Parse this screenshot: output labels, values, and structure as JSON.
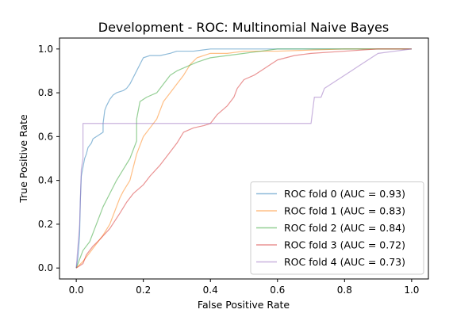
{
  "chart_data": {
    "type": "line",
    "title": "Development - ROC: Multinomial Naive Bayes",
    "xlabel": "False Positive Rate",
    "ylabel": "True Positive Rate",
    "xlim": [
      -0.05,
      1.05
    ],
    "ylim": [
      -0.05,
      1.05
    ],
    "xticks": [
      0.0,
      0.2,
      0.4,
      0.6,
      0.8,
      1.0
    ],
    "yticks": [
      0.0,
      0.2,
      0.4,
      0.6,
      0.8,
      1.0
    ],
    "xtick_labels": [
      "0.0",
      "0.2",
      "0.4",
      "0.6",
      "0.8",
      "1.0"
    ],
    "ytick_labels": [
      "0.0",
      "0.2",
      "0.4",
      "0.6",
      "0.8",
      "1.0"
    ],
    "grid": false,
    "legend_position": "lower-right",
    "series": [
      {
        "name": "ROC fold 0 (AUC = 0.93)",
        "color": "#1f77b4",
        "points": [
          [
            0,
            0
          ],
          [
            0.005,
            0.05
          ],
          [
            0.01,
            0.15
          ],
          [
            0.012,
            0.3
          ],
          [
            0.015,
            0.42
          ],
          [
            0.02,
            0.46
          ],
          [
            0.025,
            0.5
          ],
          [
            0.03,
            0.52
          ],
          [
            0.035,
            0.55
          ],
          [
            0.04,
            0.56
          ],
          [
            0.045,
            0.57
          ],
          [
            0.05,
            0.59
          ],
          [
            0.06,
            0.6
          ],
          [
            0.07,
            0.61
          ],
          [
            0.08,
            0.62
          ],
          [
            0.08,
            0.66
          ],
          [
            0.085,
            0.72
          ],
          [
            0.09,
            0.74
          ],
          [
            0.1,
            0.77
          ],
          [
            0.11,
            0.79
          ],
          [
            0.12,
            0.8
          ],
          [
            0.14,
            0.81
          ],
          [
            0.15,
            0.82
          ],
          [
            0.16,
            0.84
          ],
          [
            0.17,
            0.87
          ],
          [
            0.18,
            0.9
          ],
          [
            0.19,
            0.93
          ],
          [
            0.2,
            0.96
          ],
          [
            0.22,
            0.97
          ],
          [
            0.25,
            0.97
          ],
          [
            0.28,
            0.98
          ],
          [
            0.3,
            0.99
          ],
          [
            0.35,
            0.99
          ],
          [
            0.4,
            1.0
          ],
          [
            0.6,
            1.0
          ],
          [
            1.0,
            1.0
          ]
        ]
      },
      {
        "name": "ROC fold 1 (AUC = 0.83)",
        "color": "#ff7f0e",
        "points": [
          [
            0,
            0
          ],
          [
            0.02,
            0.03
          ],
          [
            0.04,
            0.07
          ],
          [
            0.06,
            0.11
          ],
          [
            0.08,
            0.15
          ],
          [
            0.1,
            0.2
          ],
          [
            0.11,
            0.24
          ],
          [
            0.12,
            0.28
          ],
          [
            0.13,
            0.32
          ],
          [
            0.14,
            0.35
          ],
          [
            0.16,
            0.4
          ],
          [
            0.17,
            0.46
          ],
          [
            0.18,
            0.52
          ],
          [
            0.19,
            0.56
          ],
          [
            0.2,
            0.6
          ],
          [
            0.22,
            0.64
          ],
          [
            0.24,
            0.68
          ],
          [
            0.25,
            0.72
          ],
          [
            0.26,
            0.76
          ],
          [
            0.28,
            0.8
          ],
          [
            0.3,
            0.84
          ],
          [
            0.32,
            0.88
          ],
          [
            0.34,
            0.93
          ],
          [
            0.36,
            0.96
          ],
          [
            0.38,
            0.97
          ],
          [
            0.4,
            0.98
          ],
          [
            0.45,
            0.98
          ],
          [
            0.5,
            0.99
          ],
          [
            0.6,
            0.99
          ],
          [
            0.8,
            1.0
          ],
          [
            1.0,
            1.0
          ]
        ]
      },
      {
        "name": "ROC fold 2 (AUC = 0.84)",
        "color": "#2ca02c",
        "points": [
          [
            0,
            0
          ],
          [
            0.01,
            0.04
          ],
          [
            0.02,
            0.08
          ],
          [
            0.04,
            0.12
          ],
          [
            0.06,
            0.2
          ],
          [
            0.08,
            0.28
          ],
          [
            0.1,
            0.34
          ],
          [
            0.12,
            0.4
          ],
          [
            0.14,
            0.45
          ],
          [
            0.16,
            0.5
          ],
          [
            0.18,
            0.58
          ],
          [
            0.18,
            0.68
          ],
          [
            0.19,
            0.76
          ],
          [
            0.21,
            0.78
          ],
          [
            0.24,
            0.8
          ],
          [
            0.26,
            0.84
          ],
          [
            0.28,
            0.88
          ],
          [
            0.3,
            0.9
          ],
          [
            0.33,
            0.92
          ],
          [
            0.36,
            0.94
          ],
          [
            0.4,
            0.96
          ],
          [
            0.45,
            0.97
          ],
          [
            0.5,
            0.98
          ],
          [
            0.55,
            0.99
          ],
          [
            0.6,
            1.0
          ],
          [
            1.0,
            1.0
          ]
        ]
      },
      {
        "name": "ROC fold 3 (AUC = 0.72)",
        "color": "#d62728",
        "points": [
          [
            0,
            0
          ],
          [
            0.02,
            0.02
          ],
          [
            0.03,
            0.06
          ],
          [
            0.05,
            0.1
          ],
          [
            0.07,
            0.13
          ],
          [
            0.1,
            0.18
          ],
          [
            0.13,
            0.25
          ],
          [
            0.15,
            0.3
          ],
          [
            0.17,
            0.34
          ],
          [
            0.2,
            0.38
          ],
          [
            0.22,
            0.42
          ],
          [
            0.25,
            0.47
          ],
          [
            0.28,
            0.53
          ],
          [
            0.3,
            0.57
          ],
          [
            0.32,
            0.62
          ],
          [
            0.35,
            0.64
          ],
          [
            0.38,
            0.65
          ],
          [
            0.4,
            0.66
          ],
          [
            0.42,
            0.7
          ],
          [
            0.45,
            0.74
          ],
          [
            0.47,
            0.78
          ],
          [
            0.48,
            0.82
          ],
          [
            0.5,
            0.86
          ],
          [
            0.53,
            0.88
          ],
          [
            0.56,
            0.91
          ],
          [
            0.58,
            0.93
          ],
          [
            0.6,
            0.95
          ],
          [
            0.65,
            0.97
          ],
          [
            0.7,
            0.98
          ],
          [
            0.8,
            0.99
          ],
          [
            0.9,
            1.0
          ],
          [
            1.0,
            1.0
          ]
        ]
      },
      {
        "name": "ROC fold 4 (AUC = 0.73)",
        "color": "#9467bd",
        "points": [
          [
            0,
            0
          ],
          [
            0.005,
            0.1
          ],
          [
            0.01,
            0.2
          ],
          [
            0.012,
            0.3
          ],
          [
            0.015,
            0.45
          ],
          [
            0.02,
            0.5
          ],
          [
            0.02,
            0.66
          ],
          [
            0.7,
            0.66
          ],
          [
            0.71,
            0.78
          ],
          [
            0.73,
            0.78
          ],
          [
            0.74,
            0.82
          ],
          [
            0.76,
            0.84
          ],
          [
            0.78,
            0.86
          ],
          [
            0.8,
            0.88
          ],
          [
            0.82,
            0.9
          ],
          [
            0.84,
            0.92
          ],
          [
            0.86,
            0.94
          ],
          [
            0.88,
            0.96
          ],
          [
            0.9,
            0.98
          ],
          [
            0.95,
            0.99
          ],
          [
            1.0,
            1.0
          ]
        ]
      }
    ]
  }
}
